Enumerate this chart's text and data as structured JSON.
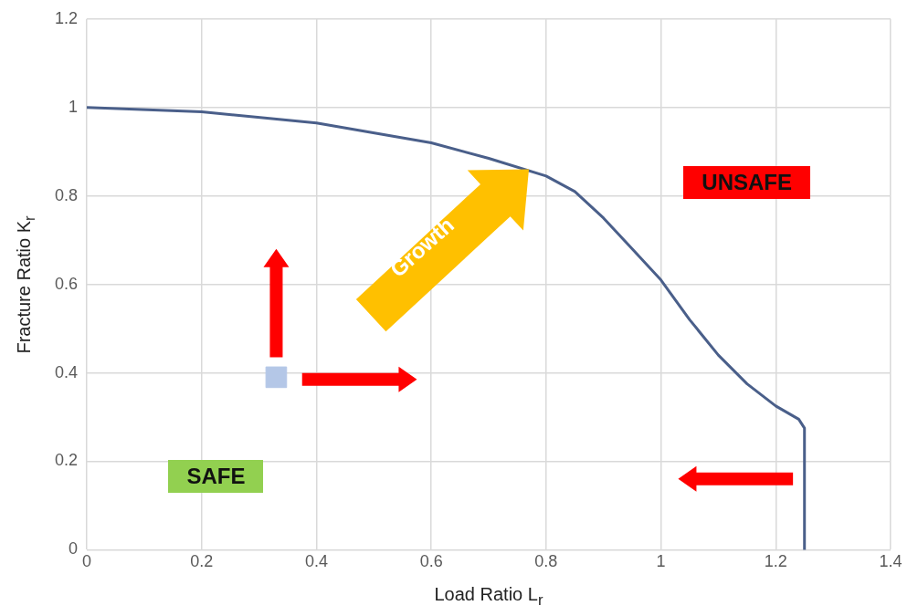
{
  "chart_data": {
    "type": "line",
    "xlabel": "Load Ratio L$_{r}$",
    "ylabel": "Fracture Ratio K$_{r}$",
    "series": [
      {
        "color": "#4a5f8a",
        "x": [
          0,
          0.2,
          0.4,
          0.6,
          0.7,
          0.8,
          0.85,
          0.9,
          0.95,
          1.0,
          1.05,
          1.1,
          1.15,
          1.2,
          1.24,
          1.25,
          1.25
        ],
        "values": [
          1,
          0.99,
          0.965,
          0.92,
          0.885,
          0.845,
          0.81,
          0.75,
          0.68,
          0.61,
          0.52,
          0.44,
          0.375,
          0.325,
          0.295,
          0.275,
          0
        ]
      },
      {
        "type": "scatter",
        "color": "#b4c7e7",
        "marker": "square",
        "x": [
          0.33
        ],
        "values": [
          0.39
        ]
      }
    ],
    "annotations": [
      "UNSAFE",
      "SAFE",
      "Growth"
    ],
    "xlim": [
      0,
      1.4
    ],
    "xticks": [
      0,
      0.2,
      0.4,
      0.6,
      0.8,
      1,
      1.2,
      1.4
    ],
    "ylim": [
      0,
      1.2
    ],
    "yticks": [
      0,
      0.2,
      0.4,
      0.6,
      0.8,
      1,
      1.2
    ],
    "grid": true,
    "legend": false
  }
}
